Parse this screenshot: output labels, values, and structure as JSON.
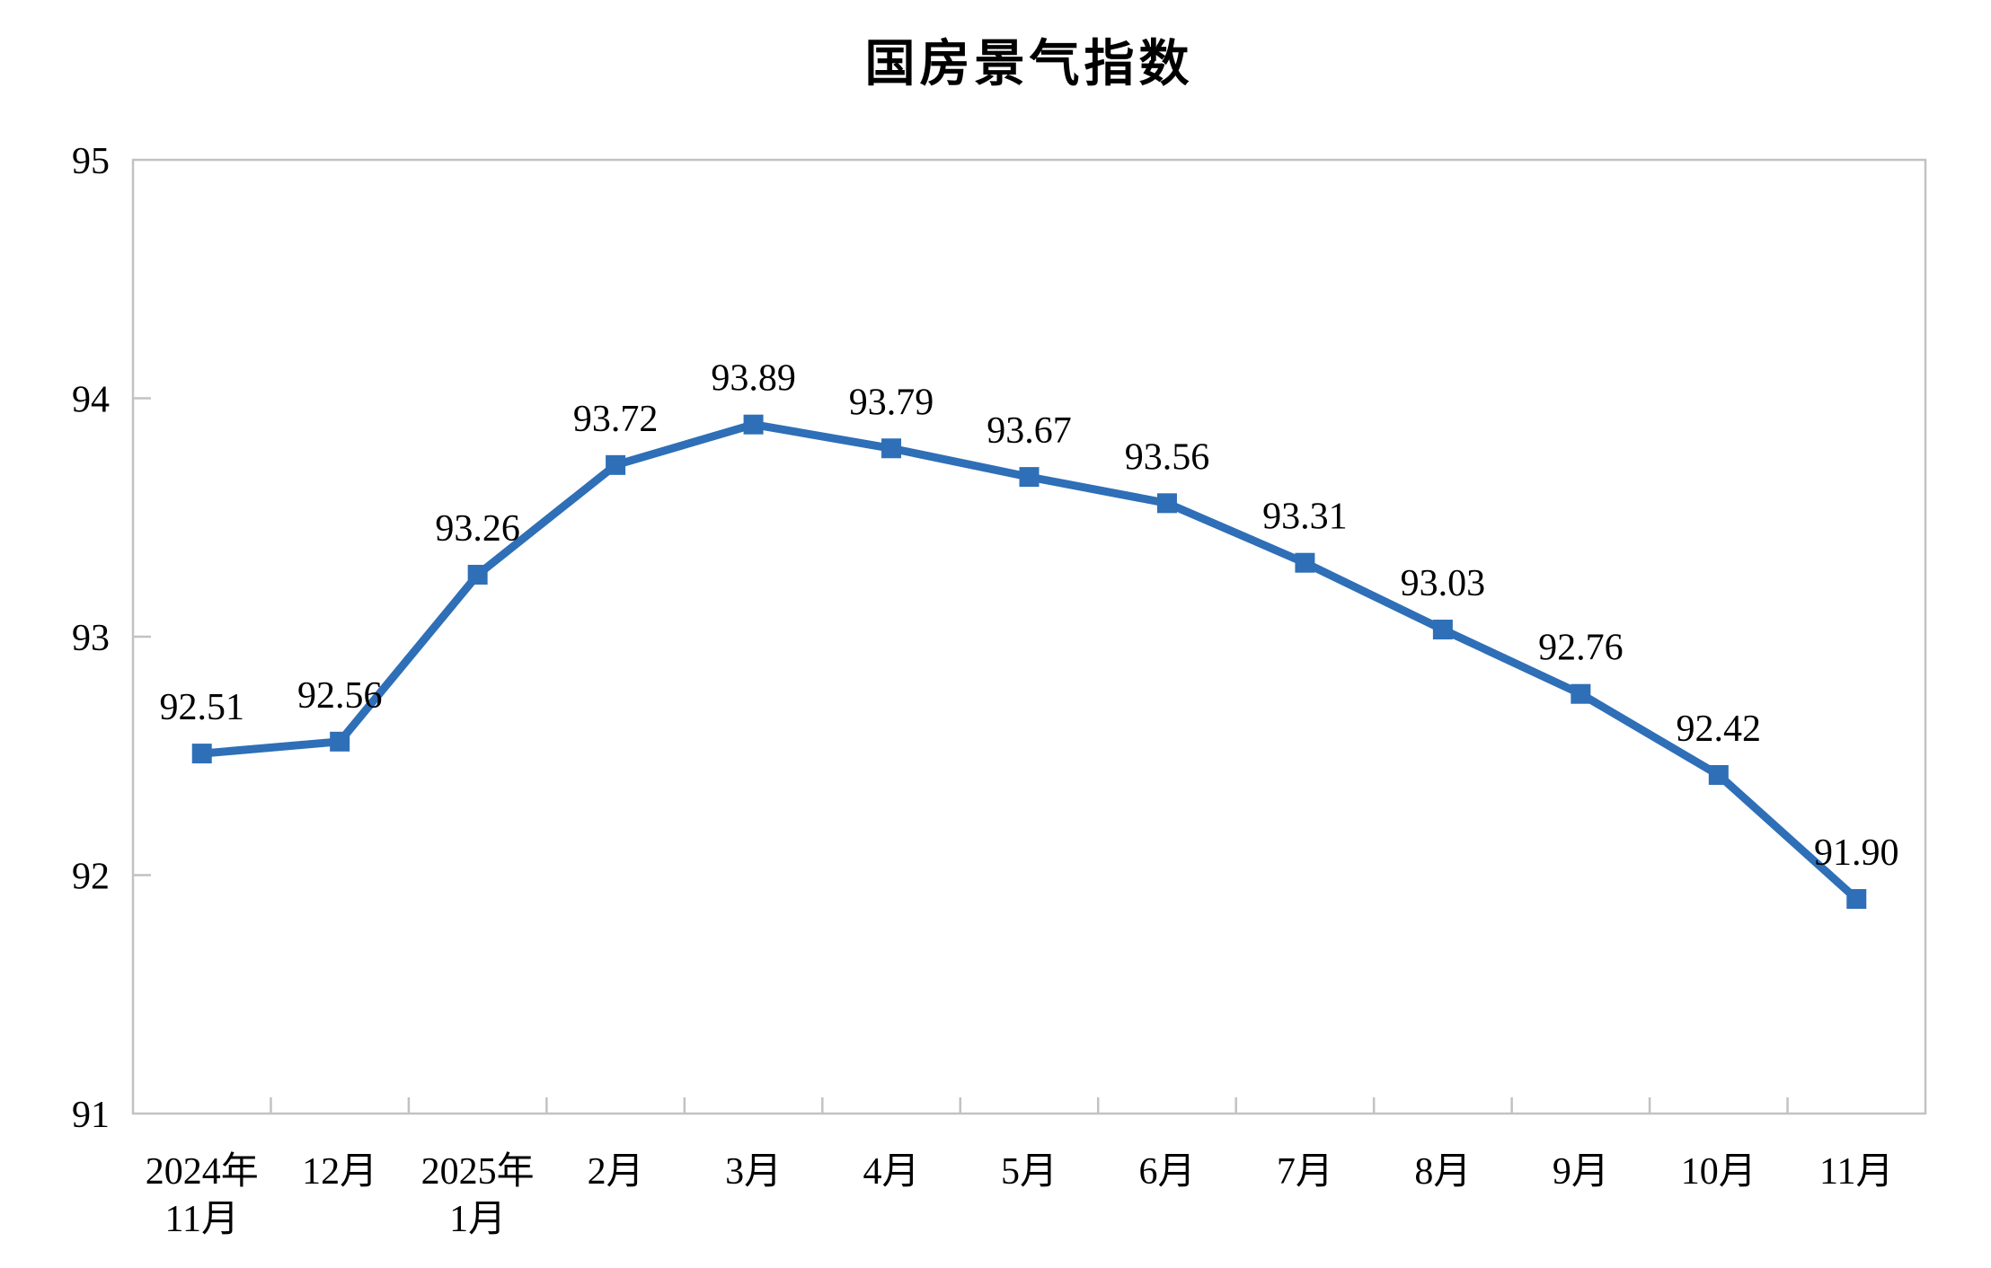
{
  "page": {
    "background_color": "#ffffff"
  },
  "chart_data": {
    "type": "line",
    "title": "国房景气指数",
    "categories": [
      "2024年\n11月",
      "12月",
      "2025年\n1月",
      "2月",
      "3月",
      "4月",
      "5月",
      "6月",
      "7月",
      "8月",
      "9月",
      "10月",
      "11月"
    ],
    "values": [
      92.51,
      92.56,
      93.26,
      93.72,
      93.89,
      93.79,
      93.67,
      93.56,
      93.31,
      93.03,
      92.76,
      92.42,
      91.9
    ],
    "data_labels": [
      "92.51",
      "92.56",
      "93.26",
      "93.72",
      "93.89",
      "93.79",
      "93.67",
      "93.56",
      "93.31",
      "93.03",
      "92.76",
      "92.42",
      "91.90"
    ],
    "xlabel": "",
    "ylabel": "",
    "ylim": [
      91,
      95
    ],
    "y_ticks": [
      91,
      92,
      93,
      94,
      95
    ],
    "grid": "off",
    "legend": "none",
    "marker_shape": "square",
    "series_color": "#2e6fb7",
    "axis_color": "#c2c2c2",
    "text_color": "#000000"
  }
}
